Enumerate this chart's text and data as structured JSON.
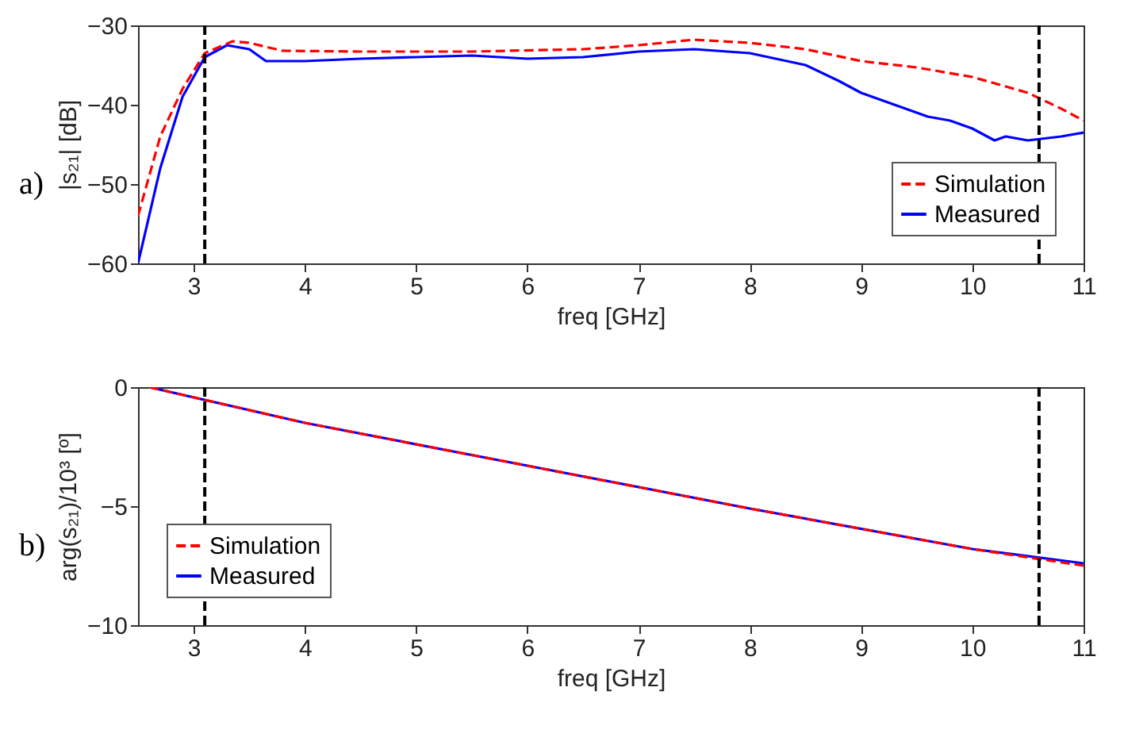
{
  "chart_data": [
    {
      "type": "line",
      "xlabel": "freq [GHz]",
      "ylabel": "|s₂₁| [dB]",
      "annotations": [
        "a)"
      ],
      "xlim": [
        2.5,
        11
      ],
      "ylim": [
        -60,
        -30
      ],
      "xticks": [
        3,
        4,
        5,
        6,
        7,
        8,
        9,
        10,
        11
      ],
      "yticks": [
        -30,
        -40,
        -50,
        -60
      ],
      "grid": false,
      "legend": "bottom right",
      "series": [
        {
          "name": "Simulation",
          "color": "#ff0000",
          "line_style": "dashed",
          "x": [
            2.5,
            2.7,
            2.9,
            3.1,
            3.35,
            3.5,
            3.8,
            4.5,
            5.5,
            6.5,
            7,
            7.5,
            8,
            8.5,
            9,
            9.5,
            10,
            10.5,
            10.8,
            11
          ],
          "values": [
            -54,
            -44,
            -38,
            -33.5,
            -32,
            -32.2,
            -33.2,
            -33.3,
            -33.3,
            -33,
            -32.5,
            -31.8,
            -32.2,
            -33,
            -34.5,
            -35.3,
            -36.5,
            -38.5,
            -40.5,
            -42
          ]
        },
        {
          "name": "Measured",
          "color": "#0000ff",
          "line_style": "solid",
          "x": [
            2.5,
            2.7,
            2.9,
            3.1,
            3.3,
            3.5,
            3.65,
            4,
            4.5,
            5,
            5.5,
            6,
            6.5,
            7,
            7.5,
            8,
            8.5,
            8.8,
            9,
            9.3,
            9.6,
            9.8,
            10,
            10.2,
            10.3,
            10.5,
            10.8,
            11
          ],
          "values": [
            -60,
            -48,
            -39,
            -34,
            -32.5,
            -33,
            -34.5,
            -34.5,
            -34.2,
            -34,
            -33.8,
            -34.2,
            -34,
            -33.3,
            -33,
            -33.5,
            -35,
            -37,
            -38.5,
            -40,
            -41.5,
            -42,
            -43,
            -44.5,
            -44,
            -44.5,
            -44,
            -43.5
          ]
        }
      ],
      "ref_lines": [
        {
          "axis": "x",
          "value": 3.1,
          "color": "#000000",
          "line_style": "dashed"
        },
        {
          "axis": "x",
          "value": 10.6,
          "color": "#000000",
          "line_style": "dashed"
        }
      ]
    },
    {
      "type": "line",
      "xlabel": "freq [GHz]",
      "ylabel": "arg(s₂₁)/10³ [º]",
      "annotations": [
        "b)"
      ],
      "xlim": [
        2.5,
        11
      ],
      "ylim": [
        -10,
        0
      ],
      "xticks": [
        3,
        4,
        5,
        6,
        7,
        8,
        9,
        10,
        11
      ],
      "yticks": [
        0,
        -5,
        -10
      ],
      "grid": false,
      "legend": "bottom left",
      "series": [
        {
          "name": "Simulation",
          "color": "#ff0000",
          "line_style": "dashed",
          "x": [
            2.6,
            4,
            6,
            8,
            10,
            11
          ],
          "values": [
            0,
            -1.5,
            -3.3,
            -5.1,
            -6.8,
            -7.5
          ]
        },
        {
          "name": "Measured",
          "color": "#0000ff",
          "line_style": "solid",
          "x": [
            2.6,
            4,
            6,
            8,
            10,
            11
          ],
          "values": [
            0,
            -1.5,
            -3.3,
            -5.1,
            -6.8,
            -7.4
          ]
        }
      ],
      "ref_lines": [
        {
          "axis": "x",
          "value": 3.1,
          "color": "#000000",
          "line_style": "dashed"
        },
        {
          "axis": "x",
          "value": 10.6,
          "color": "#000000",
          "line_style": "dashed"
        }
      ]
    }
  ]
}
